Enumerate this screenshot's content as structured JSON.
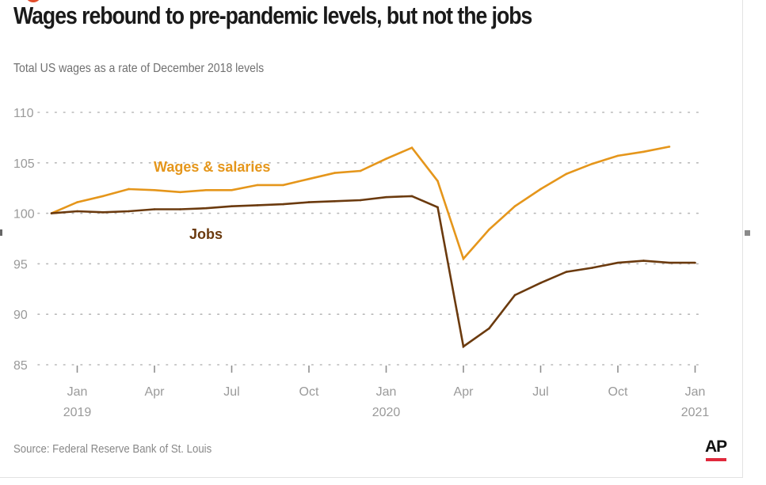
{
  "title": "Wages rebound to pre-pandemic levels, but not the jobs",
  "subtitle": "Total US wages as a rate of December 2018 levels",
  "source": "Source: Federal Reserve Bank of St. Louis",
  "logo_text": "AP",
  "colors": {
    "wages": "#e5961b",
    "jobs": "#6b3a0e",
    "grid": "#b8b8b8",
    "logo_accent": "#e0293c"
  },
  "chart_data": {
    "type": "line",
    "title": "Wages rebound to pre-pandemic levels, but not the jobs",
    "subtitle": "Total US wages as a rate of December 2018 levels",
    "x": [
      "2018-12",
      "2019-01",
      "2019-02",
      "2019-03",
      "2019-04",
      "2019-05",
      "2019-06",
      "2019-07",
      "2019-08",
      "2019-09",
      "2019-10",
      "2019-11",
      "2019-12",
      "2020-01",
      "2020-02",
      "2020-03",
      "2020-04",
      "2020-05",
      "2020-06",
      "2020-07",
      "2020-08",
      "2020-09",
      "2020-10",
      "2020-11",
      "2020-12",
      "2021-01"
    ],
    "series": [
      {
        "name": "Wages & salaries",
        "key": "wages",
        "values": [
          100,
          101.1,
          101.7,
          102.4,
          102.3,
          102.1,
          102.3,
          102.3,
          102.8,
          102.8,
          103.4,
          104.0,
          104.2,
          105.4,
          106.5,
          103.2,
          95.5,
          98.4,
          100.7,
          102.4,
          103.9,
          104.9,
          105.7,
          106.1,
          106.6,
          null
        ]
      },
      {
        "name": "Jobs",
        "key": "jobs",
        "values": [
          100,
          100.2,
          100.1,
          100.2,
          100.4,
          100.4,
          100.5,
          100.7,
          100.8,
          100.9,
          101.1,
          101.2,
          101.3,
          101.6,
          101.7,
          100.6,
          86.8,
          88.6,
          91.9,
          93.1,
          94.2,
          94.6,
          95.1,
          95.3,
          95.1,
          95.1
        ]
      }
    ],
    "ylim": [
      85,
      110
    ],
    "yticks": [
      85,
      90,
      95,
      100,
      105,
      110
    ],
    "xticks": [
      {
        "at": "2019-01",
        "label": "Jan",
        "year": "2019"
      },
      {
        "at": "2019-04",
        "label": "Apr",
        "year": ""
      },
      {
        "at": "2019-07",
        "label": "Jul",
        "year": ""
      },
      {
        "at": "2019-10",
        "label": "Oct",
        "year": ""
      },
      {
        "at": "2020-01",
        "label": "Jan",
        "year": "2020"
      },
      {
        "at": "2020-04",
        "label": "Apr",
        "year": ""
      },
      {
        "at": "2020-07",
        "label": "Jul",
        "year": ""
      },
      {
        "at": "2020-10",
        "label": "Oct",
        "year": ""
      },
      {
        "at": "2021-01",
        "label": "Jan",
        "year": "2021"
      }
    ],
    "grid": "horizontal-dotted",
    "legend": "inline-labels"
  }
}
